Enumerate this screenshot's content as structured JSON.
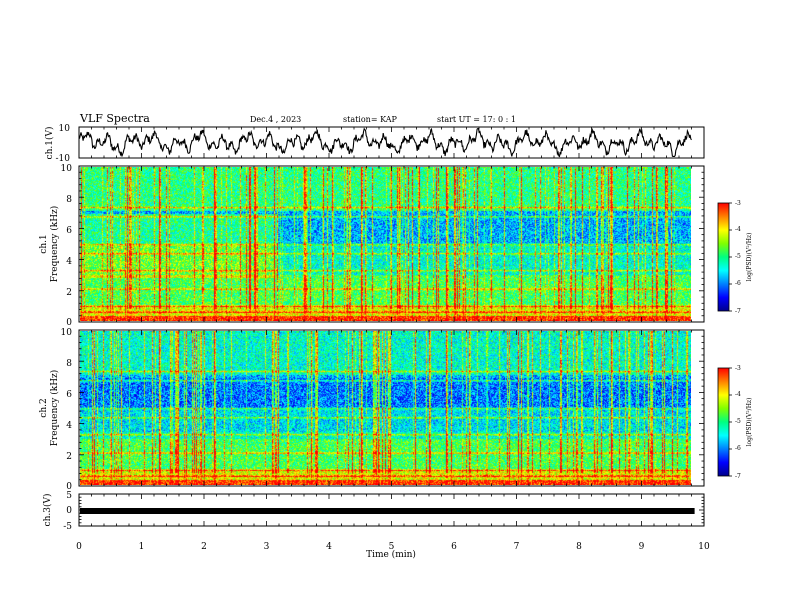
{
  "header": {
    "title": "VLF Spectra",
    "date": "Dec.4 , 2023",
    "station": "station= KAP",
    "start": "start UT = 17: 0 : 1"
  },
  "chart_data": [
    {
      "type": "line",
      "panel": "ch1-waveform",
      "ylabel": "ch.1(V)",
      "ylim": [
        -10,
        10
      ],
      "yticks": [
        "10",
        "-10"
      ],
      "xlim": [
        0,
        10
      ],
      "line_color": "#000000"
    },
    {
      "type": "heatmap",
      "panel": "ch1-spectrogram",
      "ylabel_line1": "ch.1",
      "ylabel_line2": "Frequency (kHz)",
      "ylim": [
        0,
        10
      ],
      "yticks": [
        "0",
        "2",
        "4",
        "6",
        "8",
        "10"
      ],
      "xlim": [
        0,
        10
      ],
      "colorbar": {
        "label": "log(PSD)(V²/Hz)",
        "range": [
          -7,
          -3
        ],
        "ticks": [
          "-3",
          "-4",
          "-5",
          "-6",
          "-7"
        ]
      }
    },
    {
      "type": "heatmap",
      "panel": "ch2-spectrogram",
      "ylabel_line1": "ch.2",
      "ylabel_line2": "Frequency (kHz)",
      "ylim": [
        0,
        10
      ],
      "yticks": [
        "0",
        "2",
        "4",
        "6",
        "8",
        "10"
      ],
      "xlim": [
        0,
        10
      ],
      "colorbar": {
        "label": "log(PSD)(V²/Hz)",
        "range": [
          -7,
          -3
        ],
        "ticks": [
          "-3",
          "-4",
          "-5",
          "-6",
          "-7"
        ]
      }
    },
    {
      "type": "line",
      "panel": "ch3-signal",
      "ylabel": "ch.3(V)",
      "ylim": [
        -5,
        5
      ],
      "yticks": [
        "5",
        "0",
        "-5"
      ],
      "xlim": [
        0,
        10
      ],
      "level": -0.3,
      "x_end": 9.85,
      "xlabel": "Time (min)",
      "xticks": [
        "0",
        "1",
        "2",
        "3",
        "4",
        "5",
        "6",
        "7",
        "8",
        "9",
        "10"
      ]
    }
  ],
  "colors": {
    "colormap": [
      "#00008b",
      "#0000ff",
      "#0080ff",
      "#00ffff",
      "#00ff80",
      "#80ff00",
      "#ffff00",
      "#ff8000",
      "#ff0000"
    ]
  }
}
